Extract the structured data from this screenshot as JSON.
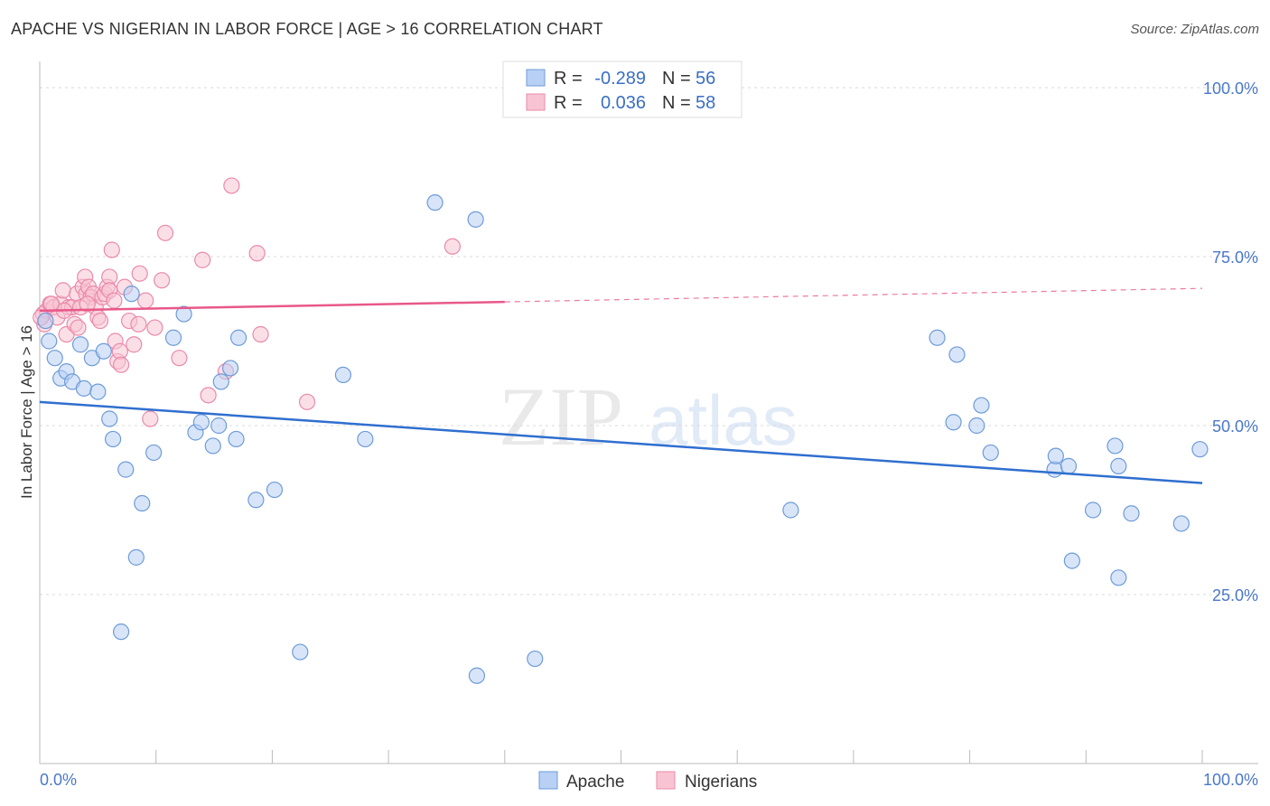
{
  "title": "APACHE VS NIGERIAN IN LABOR FORCE | AGE > 16 CORRELATION CHART",
  "source": "Source: ZipAtlas.com",
  "watermark": {
    "zip": "ZIP",
    "atlas": "atlas"
  },
  "legend": {
    "r_label": "R =",
    "n_label": "N =",
    "apache": {
      "r": "-0.289",
      "n": "56"
    },
    "nigerians": {
      "r": "0.036",
      "n": "58"
    }
  },
  "bottom_legend": {
    "apache": "Apache",
    "nigerians": "Nigerians"
  },
  "colors": {
    "apache_fill": "#b8d0f4",
    "apache_stroke": "#6e9bd8",
    "apache_line": "#2f6fcf",
    "nigerian_fill": "#f8c4d4",
    "nigerian_stroke": "#ea8aaa",
    "nigerian_line": "#e8588a",
    "tick_text": "#4a78c9",
    "grid": "#d8d8d8"
  },
  "chart_data": {
    "type": "scatter",
    "title": "APACHE VS NIGERIAN IN LABOR FORCE | AGE > 16 CORRELATION CHART",
    "xlabel": "",
    "ylabel": "In Labor Force | Age > 16",
    "xlim": [
      0,
      100
    ],
    "ylim": [
      0,
      105
    ],
    "x_tick_labels": [
      "0.0%",
      "100.0%"
    ],
    "y_ticks": [
      {
        "value": 100,
        "label": "100.0%"
      },
      {
        "value": 75,
        "label": "75.0%"
      },
      {
        "value": 50,
        "label": "50.0%"
      },
      {
        "value": 25,
        "label": "25.0%"
      }
    ],
    "series": [
      {
        "name": "Apache",
        "r": -0.289,
        "n": 56,
        "trend": {
          "x": [
            0,
            100
          ],
          "y": [
            53.5,
            41.5
          ],
          "dashed_after": null
        },
        "points": [
          [
            0.5,
            65.5
          ],
          [
            0.8,
            62.5
          ],
          [
            1.3,
            60
          ],
          [
            1.8,
            57
          ],
          [
            2.3,
            58
          ],
          [
            2.8,
            56.5
          ],
          [
            3.5,
            62
          ],
          [
            3.8,
            55.5
          ],
          [
            4.5,
            60
          ],
          [
            5,
            55
          ],
          [
            5.5,
            61
          ],
          [
            6,
            51
          ],
          [
            6.3,
            48
          ],
          [
            7.4,
            43.5
          ],
          [
            7.9,
            69.5
          ],
          [
            8.3,
            30.5
          ],
          [
            8.8,
            38.5
          ],
          [
            9.8,
            46
          ],
          [
            11.5,
            63
          ],
          [
            12.4,
            66.5
          ],
          [
            13.4,
            49
          ],
          [
            13.9,
            50.5
          ],
          [
            14.9,
            47
          ],
          [
            15.4,
            50
          ],
          [
            15.6,
            56.5
          ],
          [
            16.4,
            58.5
          ],
          [
            16.9,
            48
          ],
          [
            17.1,
            63
          ],
          [
            18.6,
            39
          ],
          [
            20.2,
            40.5
          ],
          [
            7,
            19.5
          ],
          [
            22.4,
            16.5
          ],
          [
            26.1,
            57.5
          ],
          [
            28,
            48
          ],
          [
            34,
            83
          ],
          [
            37.5,
            80.5
          ],
          [
            37.6,
            13
          ],
          [
            42.6,
            15.5
          ],
          [
            64.6,
            37.5
          ],
          [
            77.2,
            63
          ],
          [
            78.9,
            60.5
          ],
          [
            78.6,
            50.5
          ],
          [
            80.6,
            50
          ],
          [
            81,
            53
          ],
          [
            81.8,
            46
          ],
          [
            87.3,
            43.5
          ],
          [
            87.4,
            45.5
          ],
          [
            88.5,
            44
          ],
          [
            88.8,
            30
          ],
          [
            90.6,
            37.5
          ],
          [
            92.5,
            47
          ],
          [
            92.8,
            27.5
          ],
          [
            92.8,
            44
          ],
          [
            93.9,
            37
          ],
          [
            98.2,
            35.5
          ],
          [
            99.8,
            46.5
          ]
        ]
      },
      {
        "name": "Nigerians",
        "r": 0.036,
        "n": 58,
        "trend": {
          "x": [
            0,
            40,
            100
          ],
          "y": [
            67,
            68.3,
            70.3
          ],
          "dashed_after": 40
        },
        "points": [
          [
            0.3,
            66.5
          ],
          [
            0.6,
            67
          ],
          [
            0.9,
            68
          ],
          [
            1.2,
            67.5
          ],
          [
            1.5,
            66
          ],
          [
            1.8,
            68
          ],
          [
            2,
            70
          ],
          [
            2.3,
            63.5
          ],
          [
            2.5,
            67.5
          ],
          [
            2.8,
            67.5
          ],
          [
            3,
            65
          ],
          [
            3.2,
            69.5
          ],
          [
            3.3,
            64.5
          ],
          [
            3.5,
            67.5
          ],
          [
            3.7,
            70.5
          ],
          [
            3.9,
            72
          ],
          [
            4,
            69.5
          ],
          [
            4.2,
            70.5
          ],
          [
            4.4,
            69
          ],
          [
            4.6,
            69.5
          ],
          [
            4.8,
            67.5
          ],
          [
            5,
            66
          ],
          [
            5.2,
            65.5
          ],
          [
            5.4,
            69
          ],
          [
            5.6,
            69.5
          ],
          [
            5.8,
            70.5
          ],
          [
            6,
            72
          ],
          [
            6,
            70
          ],
          [
            6.2,
            76
          ],
          [
            6.4,
            68.5
          ],
          [
            6.5,
            62.5
          ],
          [
            6.7,
            59.5
          ],
          [
            6.9,
            61
          ],
          [
            7,
            59
          ],
          [
            7.3,
            70.5
          ],
          [
            7.7,
            65.5
          ],
          [
            8.1,
            62
          ],
          [
            8.6,
            72.5
          ],
          [
            9.1,
            68.5
          ],
          [
            9.5,
            51
          ],
          [
            9.9,
            64.5
          ],
          [
            10.5,
            71.5
          ],
          [
            10.8,
            78.5
          ],
          [
            12,
            60
          ],
          [
            14,
            74.5
          ],
          [
            14.5,
            54.5
          ],
          [
            16,
            58
          ],
          [
            16.5,
            85.5
          ],
          [
            18.7,
            75.5
          ],
          [
            19,
            63.5
          ],
          [
            23,
            53.5
          ],
          [
            35.5,
            76.5
          ],
          [
            8.5,
            65
          ],
          [
            4.1,
            68
          ],
          [
            2.1,
            67
          ],
          [
            1,
            68
          ],
          [
            0.4,
            65
          ],
          [
            0.1,
            66
          ]
        ]
      }
    ]
  }
}
